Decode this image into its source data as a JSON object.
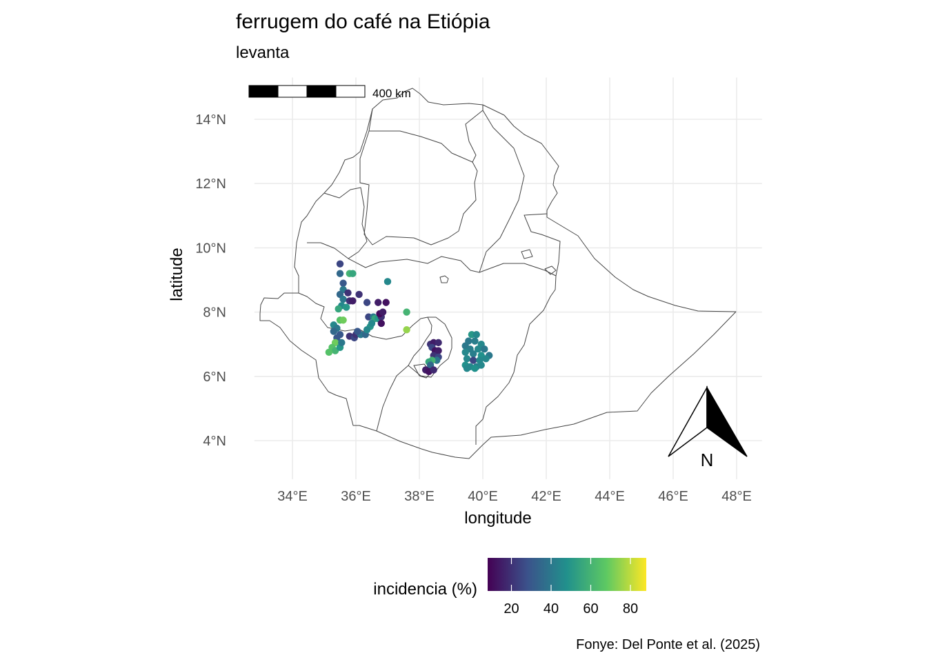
{
  "title": "ferrugem do café na Etiópia",
  "subtitle": "levanta",
  "caption": "Fonye: Del Ponte et al. (2025)",
  "scale_bar": {
    "label": "400 km"
  },
  "north_arrow": {
    "label": "N"
  },
  "legend": {
    "title": "incidencia (%)",
    "ticks": [
      "20",
      "40",
      "60",
      "80"
    ],
    "palette": "viridis",
    "colors": [
      "#440154",
      "#3b528b",
      "#21918c",
      "#5ec962",
      "#fde725"
    ],
    "range": [
      8,
      88
    ]
  },
  "chart_data": {
    "type": "scatter",
    "xlabel": "longitude",
    "ylabel": "latitude",
    "xlim": [
      32.8,
      48.8
    ],
    "ylim": [
      2.8,
      15.3
    ],
    "x_ticks": [
      {
        "value": 34,
        "label": "34°E"
      },
      {
        "value": 36,
        "label": "36°E"
      },
      {
        "value": 38,
        "label": "38°E"
      },
      {
        "value": 40,
        "label": "40°E"
      },
      {
        "value": 42,
        "label": "42°E"
      },
      {
        "value": 44,
        "label": "44°E"
      },
      {
        "value": 46,
        "label": "46°E"
      },
      {
        "value": 48,
        "label": "48°E"
      }
    ],
    "y_ticks": [
      {
        "value": 4,
        "label": "4°N"
      },
      {
        "value": 6,
        "label": "6°N"
      },
      {
        "value": 8,
        "label": "8°N"
      },
      {
        "value": 10,
        "label": "10°N"
      },
      {
        "value": 12,
        "label": "12°N"
      },
      {
        "value": 14,
        "label": "14°N"
      }
    ],
    "grid": true,
    "color_variable": "incidencia (%)",
    "points": [
      [
        35.5,
        9.5,
        25
      ],
      [
        35.5,
        9.2,
        35
      ],
      [
        35.8,
        9.2,
        60
      ],
      [
        35.9,
        9.2,
        55
      ],
      [
        35.6,
        8.9,
        30
      ],
      [
        35.6,
        8.7,
        40
      ],
      [
        35.5,
        8.55,
        35
      ],
      [
        35.75,
        8.6,
        20
      ],
      [
        35.6,
        8.4,
        40
      ],
      [
        35.8,
        8.35,
        20
      ],
      [
        35.9,
        8.35,
        15
      ],
      [
        35.55,
        8.2,
        45
      ],
      [
        35.7,
        8.15,
        50
      ],
      [
        35.45,
        8.1,
        55
      ],
      [
        36.1,
        8.55,
        20
      ],
      [
        36.35,
        8.3,
        25
      ],
      [
        35.5,
        7.75,
        65
      ],
      [
        35.6,
        7.75,
        70
      ],
      [
        35.3,
        7.6,
        45
      ],
      [
        35.4,
        7.5,
        40
      ],
      [
        35.3,
        7.4,
        35
      ],
      [
        35.5,
        7.3,
        30
      ],
      [
        35.4,
        7.2,
        30
      ],
      [
        35.35,
        7.05,
        70
      ],
      [
        35.25,
        6.9,
        65
      ],
      [
        35.35,
        6.8,
        60
      ],
      [
        35.15,
        6.75,
        65
      ],
      [
        35.5,
        6.9,
        50
      ],
      [
        35.55,
        7.05,
        40
      ],
      [
        35.8,
        7.25,
        20
      ],
      [
        35.95,
        7.2,
        25
      ],
      [
        36.0,
        7.3,
        20
      ],
      [
        36.15,
        7.3,
        40
      ],
      [
        36.3,
        7.3,
        35
      ],
      [
        36.05,
        7.4,
        30
      ],
      [
        36.45,
        7.55,
        50
      ],
      [
        36.35,
        7.45,
        45
      ],
      [
        36.4,
        7.85,
        25
      ],
      [
        36.55,
        7.85,
        40
      ],
      [
        36.6,
        7.8,
        55
      ],
      [
        36.5,
        7.65,
        45
      ],
      [
        36.7,
        7.8,
        50
      ],
      [
        36.8,
        7.85,
        20
      ],
      [
        36.75,
        7.95,
        10
      ],
      [
        36.85,
        8.0,
        15
      ],
      [
        36.7,
        8.3,
        15
      ],
      [
        36.95,
        8.3,
        12
      ],
      [
        36.8,
        7.65,
        12
      ],
      [
        37.0,
        8.95,
        45
      ],
      [
        37.6,
        8.0,
        60
      ],
      [
        37.6,
        7.45,
        75
      ],
      [
        38.35,
        7.0,
        20
      ],
      [
        38.45,
        7.05,
        15
      ],
      [
        38.6,
        7.05,
        18
      ],
      [
        38.4,
        6.9,
        25
      ],
      [
        38.5,
        6.8,
        12
      ],
      [
        38.6,
        6.8,
        15
      ],
      [
        38.45,
        6.65,
        20
      ],
      [
        38.6,
        6.6,
        25
      ],
      [
        38.55,
        6.5,
        40
      ],
      [
        38.4,
        6.5,
        60
      ],
      [
        38.3,
        6.45,
        55
      ],
      [
        38.35,
        6.35,
        35
      ],
      [
        38.2,
        6.2,
        15
      ],
      [
        38.3,
        6.15,
        12
      ],
      [
        38.45,
        6.2,
        18
      ],
      [
        39.65,
        7.3,
        50
      ],
      [
        39.8,
        7.3,
        45
      ],
      [
        39.55,
        7.1,
        40
      ],
      [
        39.75,
        7.1,
        42
      ],
      [
        39.95,
        7.0,
        45
      ],
      [
        39.45,
        6.95,
        40
      ],
      [
        39.6,
        6.85,
        42
      ],
      [
        39.85,
        6.85,
        45
      ],
      [
        40.05,
        6.85,
        40
      ],
      [
        39.45,
        6.75,
        45
      ],
      [
        39.7,
        6.7,
        42
      ],
      [
        39.95,
        6.65,
        48
      ],
      [
        40.2,
        6.65,
        40
      ],
      [
        39.5,
        6.55,
        45
      ],
      [
        39.7,
        6.5,
        25
      ],
      [
        39.9,
        6.5,
        45
      ],
      [
        40.1,
        6.55,
        45
      ],
      [
        39.45,
        6.35,
        48
      ],
      [
        39.6,
        6.3,
        45
      ],
      [
        39.8,
        6.3,
        42
      ],
      [
        39.95,
        6.35,
        45
      ],
      [
        39.5,
        6.25,
        45
      ],
      [
        39.75,
        6.25,
        48
      ]
    ]
  }
}
